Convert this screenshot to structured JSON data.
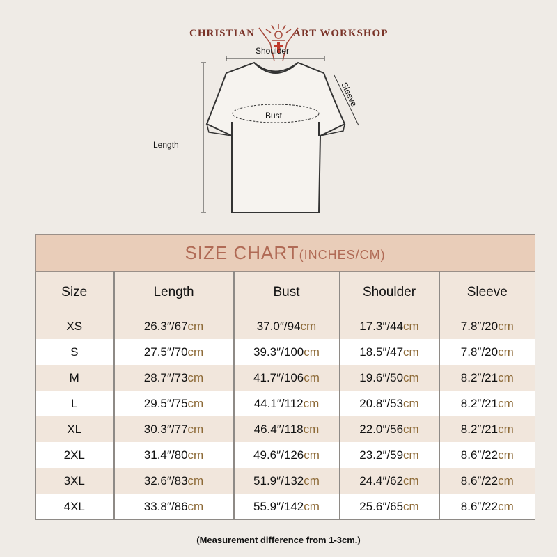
{
  "brand": {
    "left": "CHRISTIAN",
    "right": "ART WORKSHOP"
  },
  "diagram": {
    "shoulder": "Shoulder",
    "sleeve": "Sleeve",
    "bust": "Bust",
    "length": "Length"
  },
  "table": {
    "title": "SIZE CHART",
    "title_unit": "(INCHES/CM)",
    "columns": [
      "Size",
      "Length",
      "Bust",
      "Shoulder",
      "Sleeve"
    ],
    "unit_inch": "″/",
    "unit_cm": "cm",
    "rows": [
      {
        "size": "XS",
        "values": [
          [
            "26.3",
            "67"
          ],
          [
            "37.0",
            "94"
          ],
          [
            "17.3",
            "44"
          ],
          [
            "7.8",
            "20"
          ]
        ]
      },
      {
        "size": "S",
        "values": [
          [
            "27.5",
            "70"
          ],
          [
            "39.3",
            "100"
          ],
          [
            "18.5",
            "47"
          ],
          [
            "7.8",
            "20"
          ]
        ]
      },
      {
        "size": "M",
        "values": [
          [
            "28.7",
            "73"
          ],
          [
            "41.7",
            "106"
          ],
          [
            "19.6",
            "50"
          ],
          [
            "8.2",
            "21"
          ]
        ]
      },
      {
        "size": "L",
        "values": [
          [
            "29.5",
            "75"
          ],
          [
            "44.1",
            "112"
          ],
          [
            "20.8",
            "53"
          ],
          [
            "8.2",
            "21"
          ]
        ]
      },
      {
        "size": "XL",
        "values": [
          [
            "30.3",
            "77"
          ],
          [
            "46.4",
            "118"
          ],
          [
            "22.0",
            "56"
          ],
          [
            "8.2",
            "21"
          ]
        ]
      },
      {
        "size": "2XL",
        "values": [
          [
            "31.4",
            "80"
          ],
          [
            "49.6",
            "126"
          ],
          [
            "23.2",
            "59"
          ],
          [
            "8.6",
            "22"
          ]
        ]
      },
      {
        "size": "3XL",
        "values": [
          [
            "32.6",
            "83"
          ],
          [
            "51.9",
            "132"
          ],
          [
            "24.4",
            "62"
          ],
          [
            "8.6",
            "22"
          ]
        ]
      },
      {
        "size": "4XL",
        "values": [
          [
            "33.8",
            "86"
          ],
          [
            "55.9",
            "142"
          ],
          [
            "25.6",
            "65"
          ],
          [
            "8.6",
            "22"
          ]
        ]
      }
    ]
  },
  "note": "(Measurement difference from 1-3cm.)",
  "colors": {
    "title_band": "#e9cdb9",
    "title_text": "#b06a55",
    "cm": "#8d6a37",
    "brand": "#7a3328"
  }
}
